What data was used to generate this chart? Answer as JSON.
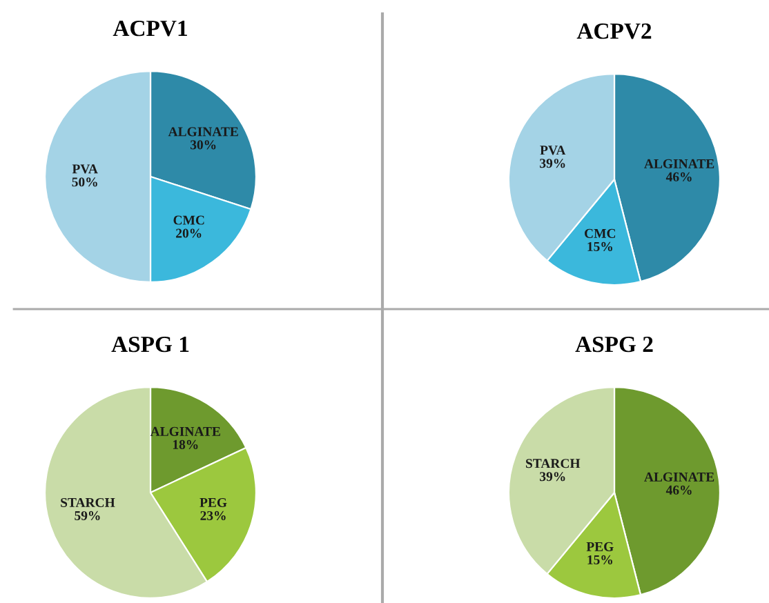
{
  "chart_data": [
    {
      "type": "pie",
      "title": "ACPV1",
      "categories": [
        "ALGINATE",
        "CMC",
        "PVA"
      ],
      "values": [
        30,
        20,
        50
      ],
      "value_labels": [
        "30%",
        "20%",
        "50%"
      ],
      "colors": [
        "#2e8aa8",
        "#3bb8dc",
        "#a4d3e6"
      ]
    },
    {
      "type": "pie",
      "title": "ACPV2",
      "categories": [
        "ALGINATE",
        "CMC",
        "PVA"
      ],
      "values": [
        46,
        15,
        39
      ],
      "value_labels": [
        "46%",
        "15%",
        "39%"
      ],
      "colors": [
        "#2e8aa8",
        "#3bb8dc",
        "#a4d3e6"
      ]
    },
    {
      "type": "pie",
      "title": "ASPG 1",
      "categories": [
        "ALGINATE",
        "PEG",
        "STARCH"
      ],
      "values": [
        18,
        23,
        59
      ],
      "value_labels": [
        "18%",
        "23%",
        "59%"
      ],
      "colors": [
        "#6e9a2e",
        "#9cc83e",
        "#c9dca8"
      ]
    },
    {
      "type": "pie",
      "title": "ASPG 2",
      "categories": [
        "ALGINATE",
        "PEG",
        "STARCH"
      ],
      "values": [
        46,
        15,
        39
      ],
      "value_labels": [
        "46%",
        "15%",
        "39%"
      ],
      "colors": [
        "#6e9a2e",
        "#9cc83e",
        "#c9dca8"
      ]
    }
  ]
}
